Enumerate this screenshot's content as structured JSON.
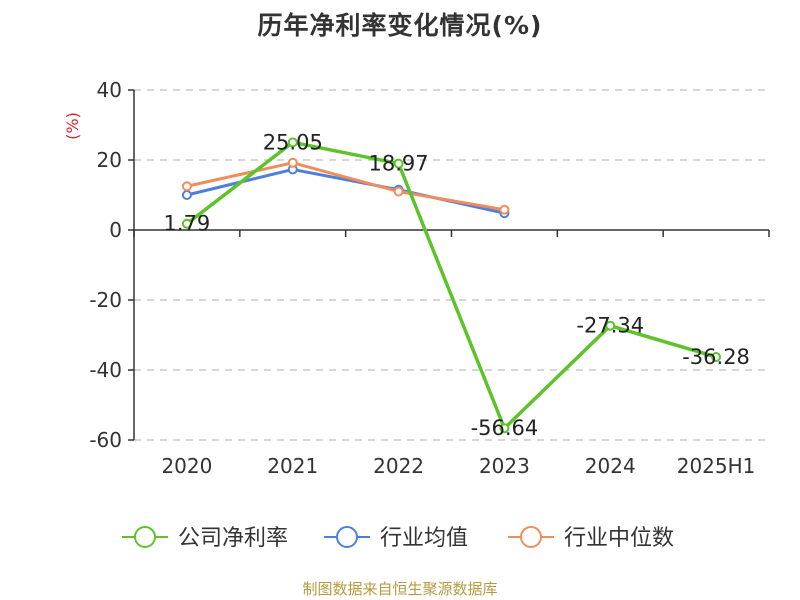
{
  "chart_data": {
    "type": "line",
    "title": "历年净利率变化情况(%)",
    "ylabel": "(%)",
    "categories": [
      "2020",
      "2021",
      "2022",
      "2023",
      "2024",
      "2025H1"
    ],
    "ylim": [
      -60,
      40
    ],
    "yticks": [
      40,
      20,
      0,
      -20,
      -40,
      -60
    ],
    "grid": true,
    "legend_position": "bottom",
    "series": [
      {
        "name": "公司净利率",
        "color": "#5cc42a",
        "values": [
          1.79,
          25.05,
          18.97,
          -56.64,
          -27.34,
          -36.28
        ],
        "labels": [
          "1.79",
          "25.05",
          "18.97",
          "-56.64",
          "-27.34",
          "-36.28"
        ]
      },
      {
        "name": "行业均值",
        "color": "#4f7fdc",
        "values": [
          10.0,
          17.3,
          11.5,
          4.8,
          null,
          null
        ]
      },
      {
        "name": "行业中位数",
        "color": "#f28c5a",
        "values": [
          12.5,
          19.2,
          11.0,
          5.8,
          null,
          null
        ]
      }
    ]
  },
  "footer": "制图数据来自恒生聚源数据库"
}
